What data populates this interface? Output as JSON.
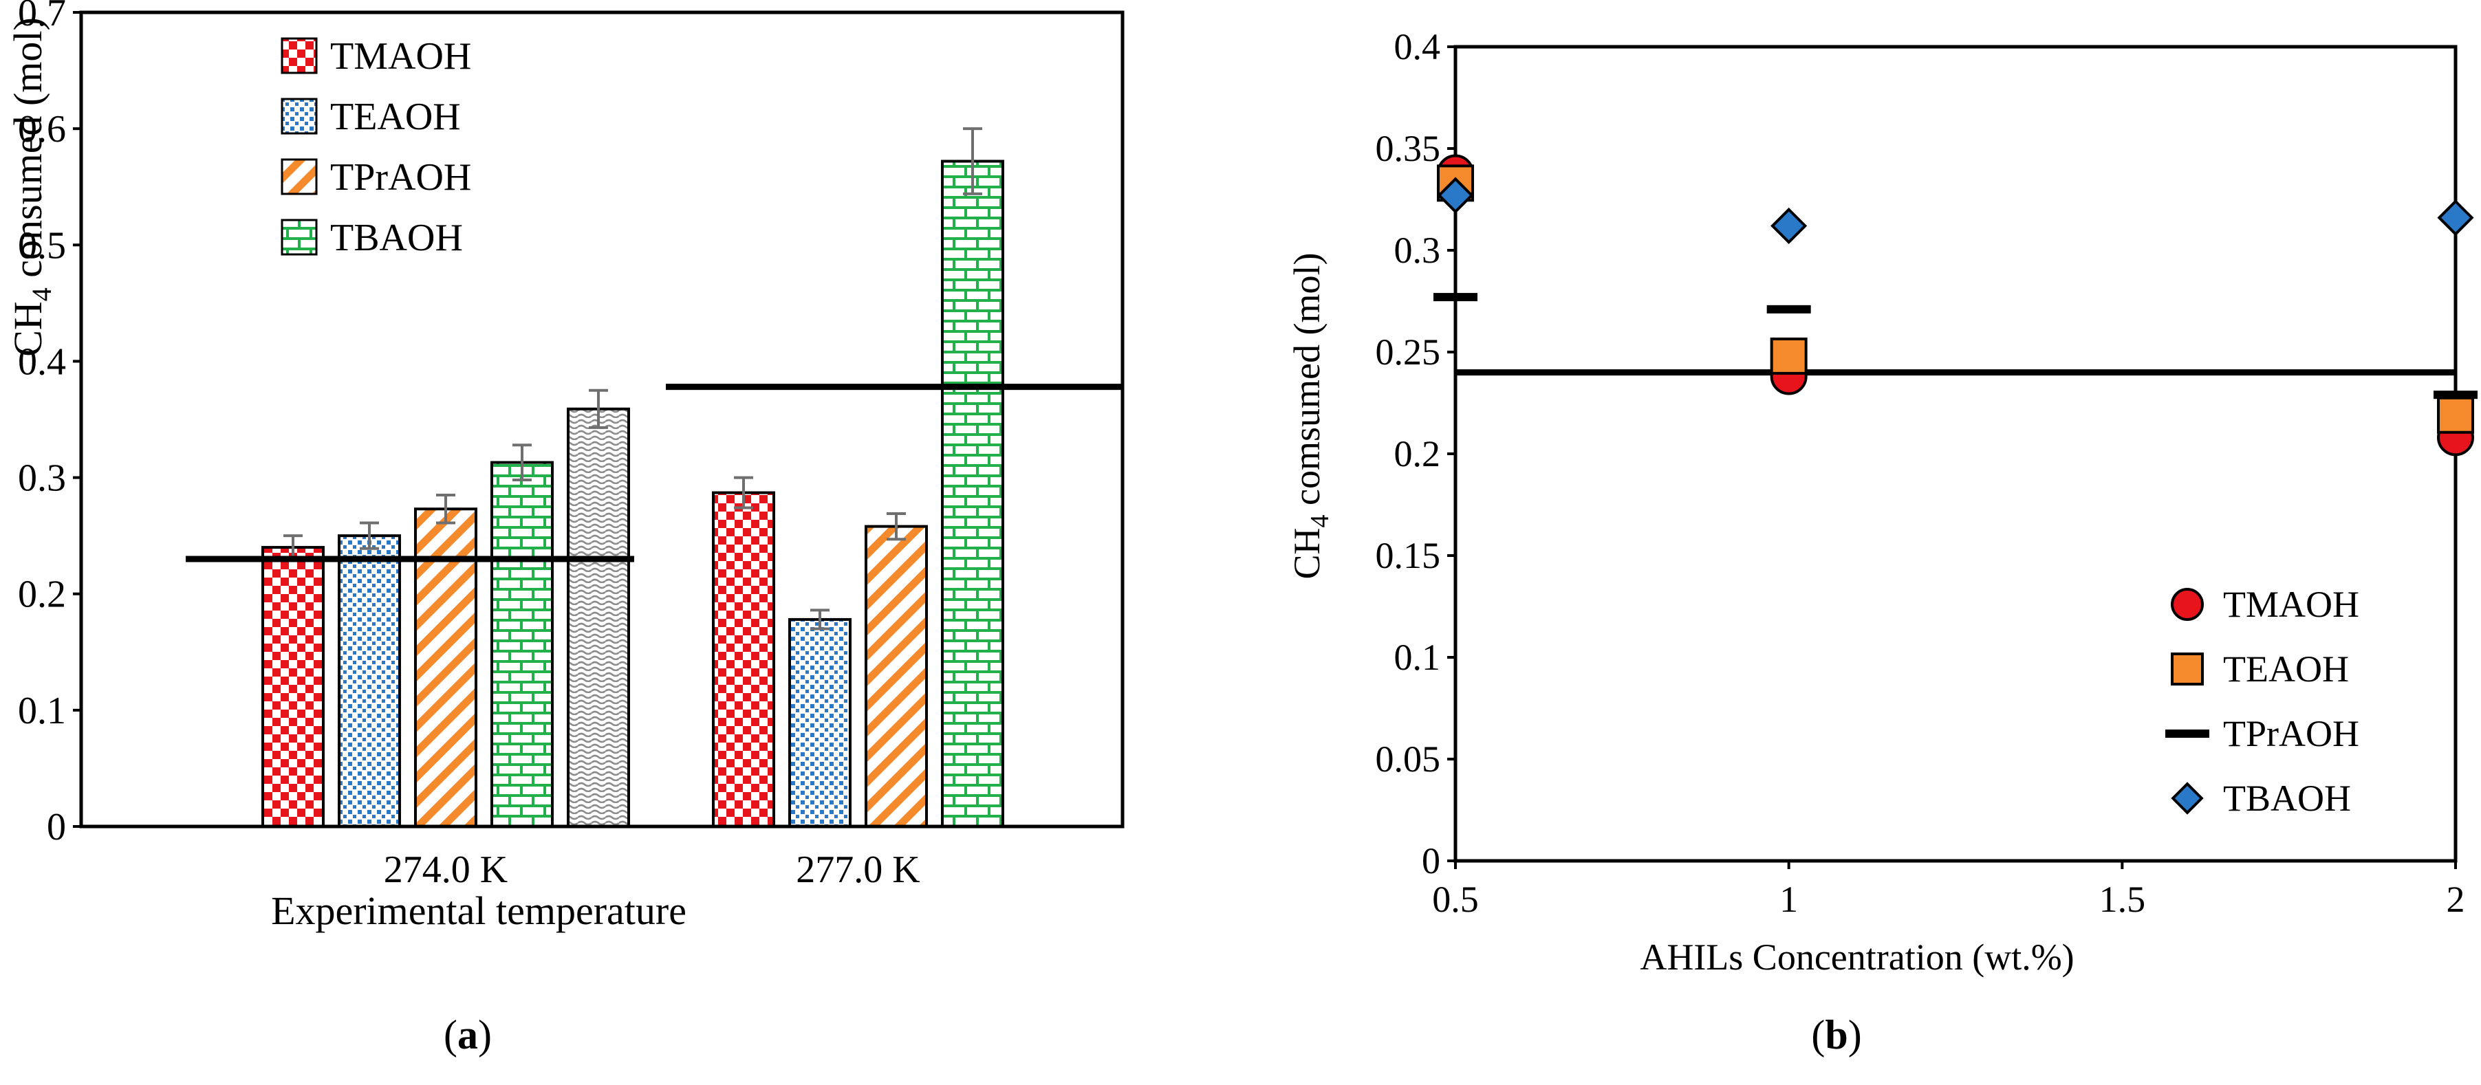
{
  "chart_data": [
    {
      "type": "bar",
      "panel_label": "a",
      "xlabel": "Experimental temperature",
      "ylabel_main": "CH",
      "ylabel_sub": "4",
      "ylabel_rest": " consumed (mol)",
      "ylim": [
        0,
        0.7
      ],
      "yticks": [
        "0",
        "0.1",
        "0.2",
        "0.3",
        "0.4",
        "0.5",
        "0.6",
        "0.7"
      ],
      "grid": false,
      "legend_position": "top-left",
      "categories": [
        "274.0 K",
        "277.0 K"
      ],
      "series": [
        {
          "name": "TMAOH",
          "pattern": "checker",
          "color": "#e8141c",
          "values": [
            0.24,
            0.287
          ],
          "errors": [
            0.01,
            0.013
          ]
        },
        {
          "name": "TEAOH",
          "pattern": "dots",
          "color": "#2a78c8",
          "values": [
            0.25,
            0.178
          ],
          "errors": [
            0.011,
            0.008
          ]
        },
        {
          "name": "TPrAOH",
          "pattern": "diagonal",
          "color": "#f58a2c",
          "values": [
            0.273,
            0.258
          ],
          "errors": [
            0.012,
            0.011
          ]
        },
        {
          "name": "TBAOH",
          "pattern": "brick",
          "color": "#22b04b",
          "values": [
            0.313,
            0.572
          ],
          "errors": [
            0.015,
            0.028
          ]
        }
      ],
      "control": {
        "values": [
          0.359
        ],
        "errors": [
          0.016
        ],
        "color": "#8c8c8c",
        "pattern": "wave"
      },
      "reference_lines": [
        0.23,
        0.378
      ]
    },
    {
      "type": "scatter",
      "panel_label": "b",
      "xlabel": "AHILs Concentration (wt.%)",
      "ylabel_main": "CH",
      "ylabel_sub": "4",
      "ylabel_rest": " comsumed (mol)",
      "xlim": [
        0.5,
        2
      ],
      "ylim": [
        0,
        0.4
      ],
      "xticks": [
        "0.5",
        "1",
        "1.5",
        "2"
      ],
      "yticks": [
        "0",
        "0.05",
        "0.1",
        "0.15",
        "0.2",
        "0.25",
        "0.3",
        "0.35",
        "0.4"
      ],
      "grid": false,
      "legend_position": "bottom-right",
      "series": [
        {
          "name": "TMAOH",
          "marker": "circle",
          "color": "#e8141c",
          "x": [
            0.5,
            1,
            2
          ],
          "y": [
            0.338,
            0.238,
            0.208
          ]
        },
        {
          "name": "TEAOH",
          "marker": "square",
          "color": "#f58a2c",
          "x": [
            0.5,
            1,
            2
          ],
          "y": [
            0.333,
            0.248,
            0.219
          ]
        },
        {
          "name": "TPrAOH",
          "marker": "dash",
          "color": "#000000",
          "x": [
            0.5,
            1,
            2
          ],
          "y": [
            0.277,
            0.271,
            0.229
          ]
        },
        {
          "name": "TBAOH",
          "marker": "diamond",
          "color": "#2a78c8",
          "x": [
            0.5,
            1,
            2
          ],
          "y": [
            0.327,
            0.312,
            0.316
          ]
        }
      ],
      "reference_lines": [
        0.24
      ]
    }
  ]
}
